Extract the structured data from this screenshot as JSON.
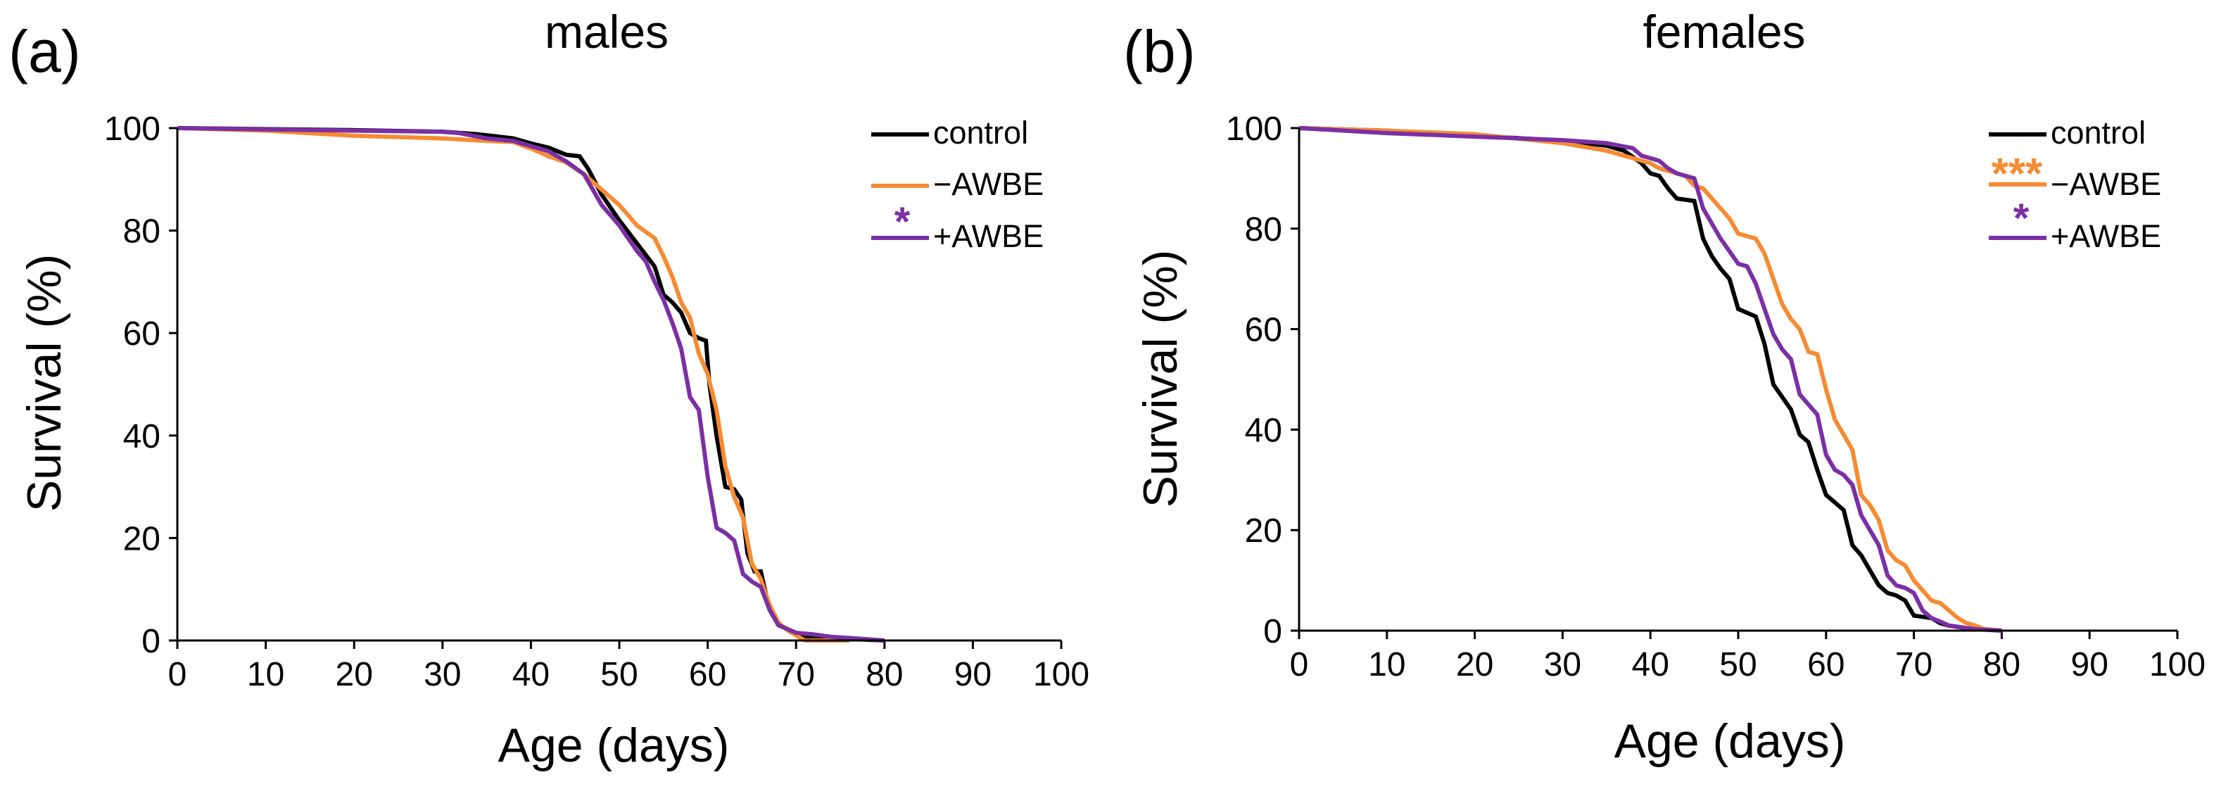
{
  "chart_data": [
    {
      "type": "line",
      "panel_label": "(a)",
      "title": "males",
      "xlabel": "Age (days)",
      "ylabel": "Survival (%)",
      "xlim": [
        0,
        100
      ],
      "ylim": [
        0,
        100
      ],
      "xticks": [
        "0",
        "10",
        "20",
        "30",
        "40",
        "50",
        "60",
        "70",
        "80",
        "90",
        "100"
      ],
      "yticks": [
        "0",
        "20",
        "40",
        "60",
        "80",
        "100"
      ],
      "grid": false,
      "legend_position": "top-right",
      "series": [
        {
          "name": "control",
          "color": "#000000",
          "significance": "",
          "points": [
            [
              0,
              100
            ],
            [
              20,
              99.6
            ],
            [
              30,
              99.3
            ],
            [
              34,
              98.8
            ],
            [
              38,
              98
            ],
            [
              40,
              97
            ],
            [
              42,
              96.2
            ],
            [
              44,
              94.8
            ],
            [
              45.5,
              94.5
            ],
            [
              46.5,
              92
            ],
            [
              48,
              87
            ],
            [
              50,
              82
            ],
            [
              52,
              77.5
            ],
            [
              54,
              73
            ],
            [
              55,
              67.5
            ],
            [
              56,
              66
            ],
            [
              57,
              64
            ],
            [
              58,
              60
            ],
            [
              59,
              59
            ],
            [
              59.8,
              58.5
            ],
            [
              60.2,
              50
            ],
            [
              61,
              40
            ],
            [
              62,
              30
            ],
            [
              63,
              29.5
            ],
            [
              63.8,
              27.5
            ],
            [
              64.5,
              17
            ],
            [
              65.3,
              13.5
            ],
            [
              66,
              13.5
            ],
            [
              67,
              6
            ],
            [
              68,
              3
            ],
            [
              70,
              1.5
            ],
            [
              71,
              0.8
            ],
            [
              73,
              0.5
            ],
            [
              76,
              0.3
            ],
            [
              80,
              0
            ]
          ]
        },
        {
          "name": "−AWBE",
          "color": "#F68B33",
          "significance": "",
          "points": [
            [
              0,
              100
            ],
            [
              10,
              99.5
            ],
            [
              20,
              98.5
            ],
            [
              30,
              98
            ],
            [
              35,
              97.5
            ],
            [
              38,
              97.3
            ],
            [
              40,
              96
            ],
            [
              42,
              94.5
            ],
            [
              44,
              93.3
            ],
            [
              46,
              91
            ],
            [
              48,
              88
            ],
            [
              50,
              85
            ],
            [
              52,
              81
            ],
            [
              54,
              78.5
            ],
            [
              55,
              75
            ],
            [
              56,
              71
            ],
            [
              57,
              66
            ],
            [
              58,
              63
            ],
            [
              59,
              56
            ],
            [
              60,
              52
            ],
            [
              61,
              45
            ],
            [
              62,
              34
            ],
            [
              63,
              28
            ],
            [
              64,
              24
            ],
            [
              65,
              15
            ],
            [
              66,
              12
            ],
            [
              67,
              7
            ],
            [
              68,
              3.5
            ],
            [
              69,
              2
            ],
            [
              70,
              1
            ],
            [
              71,
              0
            ],
            [
              76,
              0
            ]
          ]
        },
        {
          "name": "+AWBE",
          "color": "#7B2FA5",
          "significance": "*",
          "points": [
            [
              0,
              100
            ],
            [
              20,
              99.5
            ],
            [
              30,
              99.3
            ],
            [
              32,
              99
            ],
            [
              35,
              98
            ],
            [
              38,
              97.5
            ],
            [
              40,
              96.5
            ],
            [
              42,
              95.5
            ],
            [
              44,
              93.5
            ],
            [
              46,
              91
            ],
            [
              48,
              85
            ],
            [
              50,
              81
            ],
            [
              52,
              76
            ],
            [
              53,
              74
            ],
            [
              54,
              70
            ],
            [
              55,
              66.5
            ],
            [
              56,
              62
            ],
            [
              57,
              57
            ],
            [
              58,
              47.5
            ],
            [
              59,
              45
            ],
            [
              60,
              32
            ],
            [
              61,
              22
            ],
            [
              62,
              21
            ],
            [
              63,
              19.5
            ],
            [
              64,
              13
            ],
            [
              65,
              11.5
            ],
            [
              66,
              10.5
            ],
            [
              67,
              6
            ],
            [
              68,
              3
            ],
            [
              70,
              1.5
            ],
            [
              72,
              1.2
            ],
            [
              74,
              0.7
            ],
            [
              76,
              0.5
            ],
            [
              80,
              0
            ]
          ]
        }
      ]
    },
    {
      "type": "line",
      "panel_label": "(b)",
      "title": "females",
      "xlabel": "Age (days)",
      "ylabel": "Survival (%)",
      "xlim": [
        0,
        100
      ],
      "ylim": [
        0,
        100
      ],
      "xticks": [
        "0",
        "10",
        "20",
        "30",
        "40",
        "50",
        "60",
        "70",
        "80",
        "90",
        "100"
      ],
      "yticks": [
        "0",
        "20",
        "40",
        "60",
        "80",
        "100"
      ],
      "grid": false,
      "legend_position": "top-right",
      "series": [
        {
          "name": "control",
          "color": "#000000",
          "significance": "",
          "points": [
            [
              0,
              100
            ],
            [
              10,
              99.5
            ],
            [
              20,
              98.5
            ],
            [
              30,
              97.5
            ],
            [
              35,
              96.5
            ],
            [
              37,
              95.5
            ],
            [
              39,
              93
            ],
            [
              40,
              91
            ],
            [
              41,
              90.5
            ],
            [
              42,
              88
            ],
            [
              43,
              86
            ],
            [
              45,
              85.5
            ],
            [
              46,
              78
            ],
            [
              47,
              74.5
            ],
            [
              48,
              72
            ],
            [
              49,
              70
            ],
            [
              50,
              64
            ],
            [
              52,
              62.5
            ],
            [
              53,
              57
            ],
            [
              54,
              49
            ],
            [
              55,
              46.5
            ],
            [
              56,
              44
            ],
            [
              57,
              39
            ],
            [
              58,
              37.5
            ],
            [
              59,
              32
            ],
            [
              60,
              27
            ],
            [
              61,
              25.5
            ],
            [
              62,
              24
            ],
            [
              63,
              17
            ],
            [
              64,
              15
            ],
            [
              65,
              12
            ],
            [
              66,
              9
            ],
            [
              67,
              7.5
            ],
            [
              68,
              7
            ],
            [
              69,
              6
            ],
            [
              70,
              3
            ],
            [
              72,
              2.5
            ],
            [
              73,
              1.5
            ],
            [
              74,
              1
            ],
            [
              76,
              0.5
            ],
            [
              80,
              0
            ]
          ]
        },
        {
          "name": "−AWBE",
          "color": "#F68B33",
          "significance": "***",
          "points": [
            [
              0,
              100
            ],
            [
              10,
              99.5
            ],
            [
              20,
              98.8
            ],
            [
              30,
              97
            ],
            [
              35,
              95.5
            ],
            [
              38,
              94
            ],
            [
              40,
              93
            ],
            [
              41,
              92
            ],
            [
              42,
              91.5
            ],
            [
              44,
              90.5
            ],
            [
              45,
              88.5
            ],
            [
              46,
              88
            ],
            [
              47,
              86
            ],
            [
              48,
              84
            ],
            [
              49,
              82
            ],
            [
              50,
              79
            ],
            [
              52,
              78
            ],
            [
              53,
              75
            ],
            [
              54,
              70
            ],
            [
              55,
              65
            ],
            [
              56,
              62
            ],
            [
              57,
              60
            ],
            [
              58,
              55.5
            ],
            [
              59,
              55
            ],
            [
              60,
              48
            ],
            [
              61,
              42
            ],
            [
              62,
              39
            ],
            [
              63,
              36
            ],
            [
              64,
              27
            ],
            [
              65,
              25
            ],
            [
              66,
              22
            ],
            [
              67,
              16
            ],
            [
              68,
              14
            ],
            [
              69,
              13
            ],
            [
              70,
              10
            ],
            [
              71,
              8
            ],
            [
              72,
              6
            ],
            [
              73,
              5.5
            ],
            [
              74,
              4
            ],
            [
              75,
              2.5
            ],
            [
              76,
              1.5
            ],
            [
              77,
              1
            ],
            [
              78,
              0.3
            ],
            [
              80,
              0
            ]
          ]
        },
        {
          "name": "+AWBE",
          "color": "#7B2FA5",
          "significance": "*",
          "points": [
            [
              0,
              100
            ],
            [
              10,
              99
            ],
            [
              20,
              98.3
            ],
            [
              30,
              97.6
            ],
            [
              35,
              97
            ],
            [
              38,
              96
            ],
            [
              39,
              94.5
            ],
            [
              40,
              94
            ],
            [
              41,
              93.5
            ],
            [
              42,
              92
            ],
            [
              43,
              91
            ],
            [
              45,
              90
            ],
            [
              46,
              84
            ],
            [
              47,
              81
            ],
            [
              48,
              78
            ],
            [
              49,
              75.5
            ],
            [
              50,
              73
            ],
            [
              51,
              72.5
            ],
            [
              52,
              69
            ],
            [
              53,
              64
            ],
            [
              54,
              59
            ],
            [
              55,
              56
            ],
            [
              56,
              54
            ],
            [
              57,
              47
            ],
            [
              58,
              45
            ],
            [
              59,
              43
            ],
            [
              60,
              35
            ],
            [
              61,
              32
            ],
            [
              62,
              31
            ],
            [
              63,
              29
            ],
            [
              64,
              23
            ],
            [
              65,
              20
            ],
            [
              66,
              17
            ],
            [
              67,
              11
            ],
            [
              68,
              9
            ],
            [
              69,
              8.5
            ],
            [
              70,
              7.5
            ],
            [
              71,
              4
            ],
            [
              72,
              2.5
            ],
            [
              73,
              1.8
            ],
            [
              74,
              1
            ],
            [
              76,
              0.5
            ],
            [
              77,
              0.3
            ],
            [
              80,
              0
            ]
          ]
        }
      ]
    }
  ]
}
